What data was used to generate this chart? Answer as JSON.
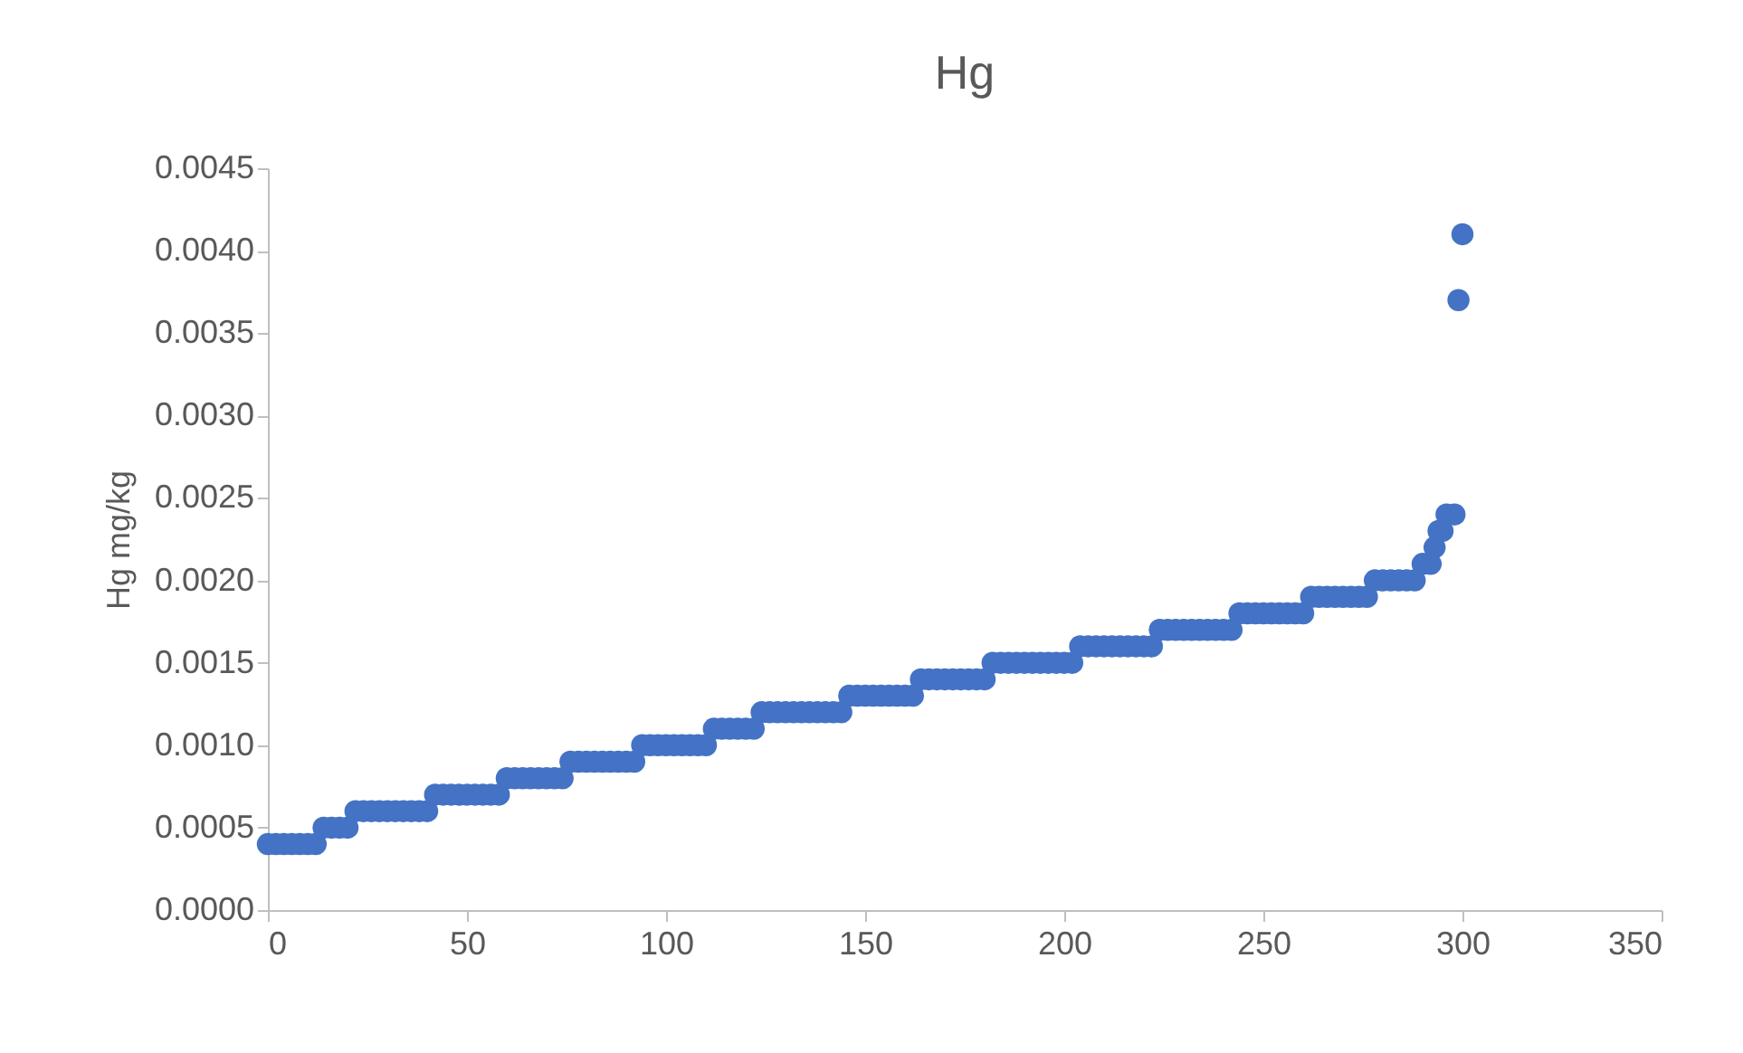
{
  "chart_data": {
    "type": "scatter",
    "title": "Hg",
    "ylabel": "Hg mg/kg",
    "marker": "circle",
    "grid": false,
    "legend": false,
    "x": [
      0,
      2,
      4,
      6,
      8,
      10,
      12,
      14,
      16,
      18,
      20,
      22,
      24,
      26,
      28,
      30,
      32,
      34,
      36,
      38,
      40,
      42,
      44,
      46,
      48,
      50,
      52,
      54,
      56,
      58,
      60,
      62,
      64,
      66,
      68,
      70,
      72,
      74,
      76,
      78,
      80,
      82,
      84,
      86,
      88,
      90,
      92,
      94,
      96,
      98,
      100,
      102,
      104,
      106,
      108,
      110,
      112,
      114,
      116,
      118,
      120,
      122,
      124,
      126,
      128,
      130,
      132,
      134,
      136,
      138,
      140,
      142,
      144,
      146,
      148,
      150,
      152,
      154,
      156,
      158,
      160,
      162,
      164,
      166,
      168,
      170,
      172,
      174,
      176,
      178,
      180,
      182,
      184,
      186,
      188,
      190,
      192,
      194,
      196,
      198,
      200,
      202,
      204,
      206,
      208,
      210,
      212,
      214,
      216,
      218,
      220,
      222,
      224,
      226,
      228,
      230,
      232,
      234,
      236,
      238,
      240,
      242,
      244,
      246,
      248,
      250,
      252,
      254,
      256,
      258,
      260,
      262,
      264,
      266,
      268,
      270,
      272,
      274,
      276,
      278,
      280,
      282,
      284,
      286,
      288,
      290,
      292,
      293,
      294,
      295,
      296,
      298,
      299,
      300
    ],
    "series": [
      {
        "color": "#4472c4",
        "values": [
          0.0004,
          0.0004,
          0.0004,
          0.0004,
          0.0004,
          0.0004,
          0.0004,
          0.0005,
          0.0005,
          0.0005,
          0.0005,
          0.0006,
          0.0006,
          0.0006,
          0.0006,
          0.0006,
          0.0006,
          0.0006,
          0.0006,
          0.0006,
          0.0006,
          0.0007,
          0.0007,
          0.0007,
          0.0007,
          0.0007,
          0.0007,
          0.0007,
          0.0007,
          0.0007,
          0.0008,
          0.0008,
          0.0008,
          0.0008,
          0.0008,
          0.0008,
          0.0008,
          0.0008,
          0.0009,
          0.0009,
          0.0009,
          0.0009,
          0.0009,
          0.0009,
          0.0009,
          0.0009,
          0.0009,
          0.001,
          0.001,
          0.001,
          0.001,
          0.001,
          0.001,
          0.001,
          0.001,
          0.001,
          0.0011,
          0.0011,
          0.0011,
          0.0011,
          0.0011,
          0.0011,
          0.0012,
          0.0012,
          0.0012,
          0.0012,
          0.0012,
          0.0012,
          0.0012,
          0.0012,
          0.0012,
          0.0012,
          0.0012,
          0.0013,
          0.0013,
          0.0013,
          0.0013,
          0.0013,
          0.0013,
          0.0013,
          0.0013,
          0.0013,
          0.0014,
          0.0014,
          0.0014,
          0.0014,
          0.0014,
          0.0014,
          0.0014,
          0.0014,
          0.0014,
          0.0015,
          0.0015,
          0.0015,
          0.0015,
          0.0015,
          0.0015,
          0.0015,
          0.0015,
          0.0015,
          0.0015,
          0.0015,
          0.0016,
          0.0016,
          0.0016,
          0.0016,
          0.0016,
          0.0016,
          0.0016,
          0.0016,
          0.0016,
          0.0016,
          0.0017,
          0.0017,
          0.0017,
          0.0017,
          0.0017,
          0.0017,
          0.0017,
          0.0017,
          0.0017,
          0.0017,
          0.0018,
          0.0018,
          0.0018,
          0.0018,
          0.0018,
          0.0018,
          0.0018,
          0.0018,
          0.0018,
          0.0019,
          0.0019,
          0.0019,
          0.0019,
          0.0019,
          0.0019,
          0.0019,
          0.0019,
          0.002,
          0.002,
          0.002,
          0.002,
          0.002,
          0.002,
          0.0021,
          0.0021,
          0.0022,
          0.0023,
          0.0023,
          0.0024,
          0.0024,
          0.0037,
          0.0041
        ]
      }
    ],
    "xlim": [
      0,
      350
    ],
    "xticks": [
      0,
      50,
      100,
      150,
      200,
      250,
      300,
      350
    ],
    "ylim": [
      0,
      0.0045
    ],
    "yticks": [
      {
        "value": 0,
        "label": "0.0000"
      },
      {
        "value": 0.0005,
        "label": "0.0005"
      },
      {
        "value": 0.001,
        "label": "0.0010"
      },
      {
        "value": 0.0015,
        "label": "0.0015"
      },
      {
        "value": 0.002,
        "label": "0.0020"
      },
      {
        "value": 0.0025,
        "label": "0.0025"
      },
      {
        "value": 0.003,
        "label": "0.0030"
      },
      {
        "value": 0.0035,
        "label": "0.0035"
      },
      {
        "value": 0.004,
        "label": "0.0040"
      },
      {
        "value": 0.0045,
        "label": "0.0045"
      }
    ]
  }
}
